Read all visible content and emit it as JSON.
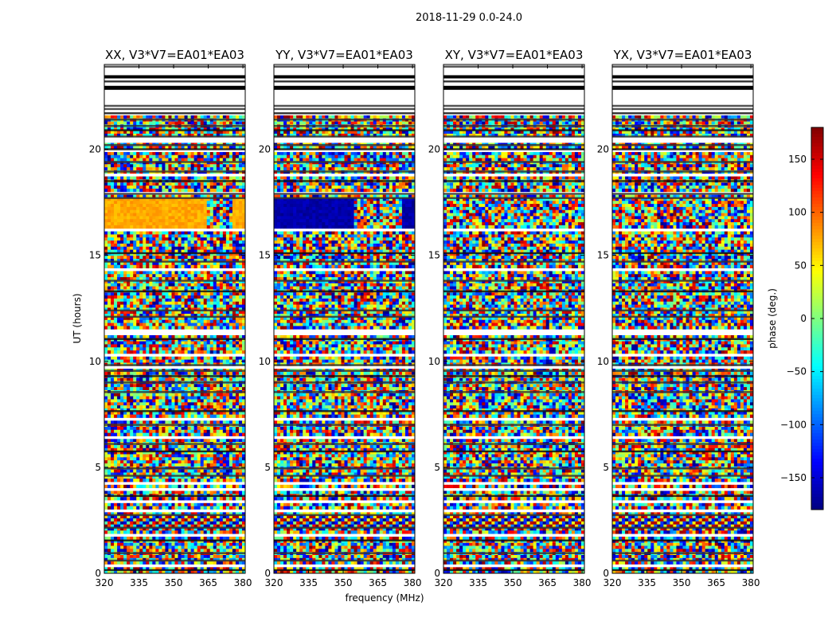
{
  "chart_data": {
    "type": "heatmap",
    "suptitle": "2018-11-29 0.0-24.0",
    "xlabel": "frequency (MHz)",
    "ylabel": "UT (hours)",
    "xlim": [
      320,
      381
    ],
    "ylim": [
      0,
      24
    ],
    "xticks": [
      320,
      335,
      350,
      365,
      380
    ],
    "yticks": [
      0,
      5,
      10,
      15,
      20
    ],
    "colormap": "jet",
    "colorbar": {
      "label": "phase (deg.)",
      "range": [
        -180,
        180
      ],
      "ticks": [
        -150,
        -100,
        -50,
        0,
        50,
        100,
        150
      ],
      "tick_labels": [
        "−150",
        "−100",
        "−50",
        "0",
        "50",
        "100",
        "150"
      ]
    },
    "panels": [
      {
        "title": "XX, V3*V7=EA01*EA03",
        "coherent_band": {
          "ut": [
            16.3,
            17.7
          ],
          "freq": [
            320,
            364
          ],
          "phase": 75,
          "edge_freq": [
            376,
            381
          ]
        }
      },
      {
        "title": "YY, V3*V7=EA01*EA03",
        "coherent_band": {
          "ut": [
            16.3,
            17.7
          ],
          "freq": [
            320,
            355
          ],
          "phase": -165,
          "edge_freq": [
            375,
            381
          ]
        }
      },
      {
        "title": "XY, V3*V7=EA01*EA03"
      },
      {
        "title": "YX, V3*V7=EA01*EA03"
      }
    ]
  }
}
